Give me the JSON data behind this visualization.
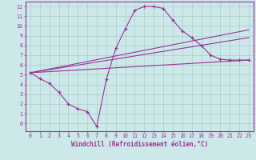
{
  "bg_color": "#cce8e8",
  "line_color": "#993399",
  "grid_color": "#aacccc",
  "xlabel": "Windchill (Refroidissement éolien,°C)",
  "xlabel_color": "#993399",
  "yticks": [
    0,
    1,
    2,
    3,
    4,
    5,
    6,
    7,
    8,
    9,
    10,
    11,
    12
  ],
  "xticks": [
    0,
    1,
    2,
    3,
    4,
    5,
    6,
    7,
    8,
    9,
    10,
    11,
    12,
    13,
    14,
    15,
    16,
    17,
    18,
    19,
    20,
    21,
    22,
    23
  ],
  "series1_x": [
    0,
    1,
    2,
    3,
    4,
    5,
    6,
    7,
    8,
    9,
    10,
    11,
    12,
    13,
    14,
    15,
    16,
    17,
    18,
    19,
    20,
    21,
    22,
    23
  ],
  "series1_y": [
    5.2,
    4.6,
    4.1,
    3.2,
    2.0,
    1.5,
    1.2,
    -0.3,
    4.5,
    7.7,
    9.7,
    11.6,
    12.0,
    12.0,
    11.8,
    10.6,
    9.5,
    8.8,
    8.0,
    7.0,
    6.6,
    6.5,
    6.5,
    6.5
  ],
  "series2_x": [
    0,
    23
  ],
  "series2_y": [
    5.2,
    9.6
  ],
  "series3_x": [
    0,
    23
  ],
  "series3_y": [
    5.2,
    8.8
  ],
  "series4_x": [
    0,
    23
  ],
  "series4_y": [
    5.2,
    6.5
  ],
  "xlim": [
    -0.5,
    23.5
  ],
  "ylim": [
    -0.8,
    12.5
  ]
}
